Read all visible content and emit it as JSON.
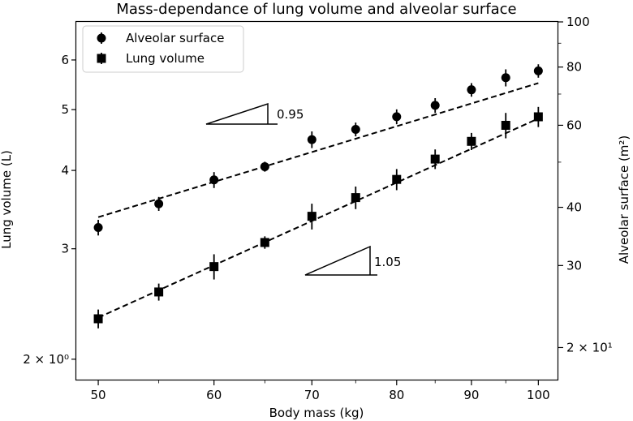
{
  "chart_data": {
    "type": "scatter",
    "title": "Mass-dependance of lung volume and alveolar surface",
    "xlabel": "Body mass (kg)",
    "ylabel_left": "Lung volume (L)",
    "ylabel_right": "Alveolar surface (m²)",
    "xscale": "log",
    "yscale_left": "log",
    "yscale_right": "log",
    "xlim": [
      48.3,
      103.2
    ],
    "ylim_left": [
      1.85,
      6.9
    ],
    "ylim_right": [
      17.0,
      100.0
    ],
    "x_ticks": [
      {
        "value": 50,
        "label": "50"
      },
      {
        "value": 60,
        "label": "60"
      },
      {
        "value": 70,
        "label": "70"
      },
      {
        "value": 80,
        "label": "80"
      },
      {
        "value": 90,
        "label": "90"
      },
      {
        "value": 100,
        "label": "100"
      }
    ],
    "y_left_ticks": [
      {
        "value": 2,
        "label": "2 × 10⁰"
      },
      {
        "value": 3,
        "label": "3"
      },
      {
        "value": 4,
        "label": "4"
      },
      {
        "value": 5,
        "label": "5"
      },
      {
        "value": 6,
        "label": "6"
      }
    ],
    "y_right_ticks": [
      {
        "value": 20,
        "label": "2 × 10¹"
      },
      {
        "value": 30,
        "label": "30"
      },
      {
        "value": 40,
        "label": "40"
      },
      {
        "value": 60,
        "label": "60"
      },
      {
        "value": 80,
        "label": "80"
      },
      {
        "value": 100,
        "label": "100"
      }
    ],
    "legend": {
      "placement": "top-left",
      "entries": [
        "Alveolar surface",
        "Lung volume"
      ]
    },
    "series": [
      {
        "name": "Alveolar surface",
        "axis": "right",
        "marker": "circle",
        "x": [
          50,
          55,
          60,
          65,
          70,
          75,
          80,
          85,
          90,
          95,
          100
        ],
        "y": [
          36.2,
          40.7,
          45.8,
          48.9,
          55.9,
          58.8,
          62.6,
          66.2,
          71.5,
          75.9,
          78.5
        ],
        "yerr": [
          1.4,
          1.4,
          1.8,
          1.2,
          2.3,
          2.0,
          2.3,
          2.4,
          2.4,
          3.2,
          2.6
        ],
        "fit": {
          "x": [
            50,
            100
          ],
          "y": [
            38.1,
            73.9
          ]
        }
      },
      {
        "name": "Lung volume",
        "axis": "left",
        "marker": "square",
        "x": [
          50,
          55,
          60,
          65,
          70,
          75,
          80,
          85,
          90,
          95,
          100
        ],
        "y": [
          2.32,
          2.56,
          2.81,
          3.07,
          3.38,
          3.62,
          3.87,
          4.17,
          4.45,
          4.72,
          4.87
        ],
        "yerr": [
          0.08,
          0.08,
          0.13,
          0.07,
          0.16,
          0.15,
          0.15,
          0.15,
          0.14,
          0.22,
          0.18
        ],
        "fit": {
          "x": [
            50,
            100
          ],
          "y": [
            2.33,
            4.84
          ]
        }
      }
    ],
    "annotations": [
      {
        "text": "0.95",
        "slope": 0.95
      },
      {
        "text": "1.05",
        "slope": 1.05
      }
    ]
  }
}
